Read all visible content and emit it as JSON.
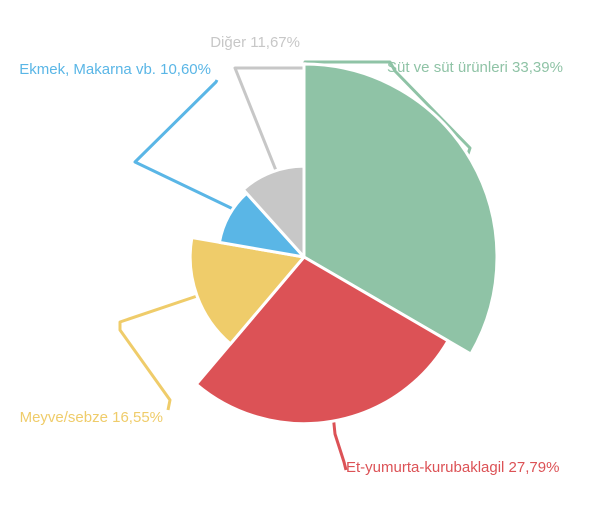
{
  "chart_data": {
    "type": "pie",
    "variant": "variable-radius",
    "start_angle_deg": 0,
    "direction": "clockwise",
    "slices": [
      {
        "label": "Süt ve süt ürünleri 33,39%",
        "name": "Süt ve süt ürünleri",
        "value": 33.39,
        "color": "#8fc3a6"
      },
      {
        "label": "Et-yumurta-kurubaklagil 27,79%",
        "name": "Et-yumurta-kurubaklagil",
        "value": 27.79,
        "color": "#dc5256"
      },
      {
        "label": "Meyve/sebze 16,55%",
        "name": "Meyve/sebze",
        "value": 16.55,
        "color": "#efcc6a"
      },
      {
        "label": "Ekmek, Makarna vb. 10,60%",
        "name": "Ekmek, Makarna vb.",
        "value": 10.6,
        "color": "#5ab6e6"
      },
      {
        "label": "Diğer 11,67%",
        "name": "Diğer",
        "value": 11.67,
        "color": "#c7c7c7"
      }
    ]
  }
}
